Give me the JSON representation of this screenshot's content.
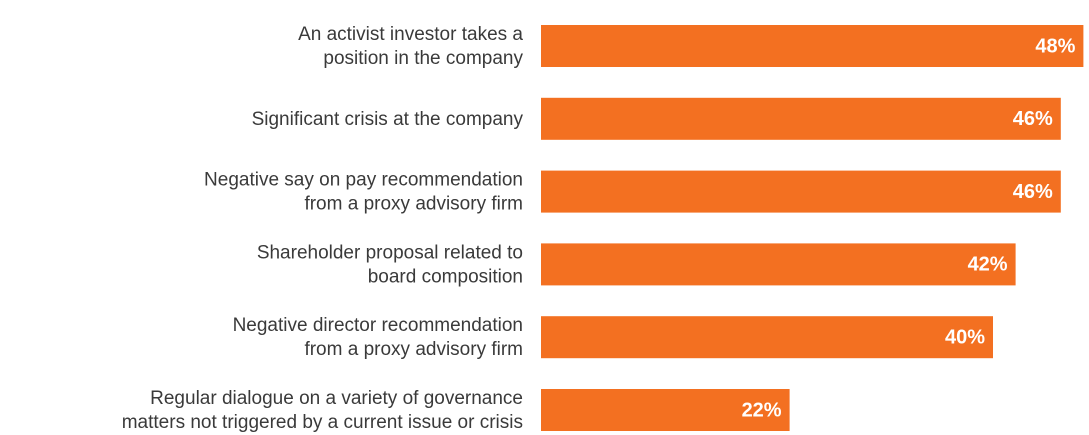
{
  "chart_data": {
    "type": "bar",
    "orientation": "horizontal",
    "categories": [
      [
        "An activist investor takes a",
        "position in the company"
      ],
      [
        "Significant crisis at the company"
      ],
      [
        "Negative say on pay recommendation",
        "from a proxy advisory firm"
      ],
      [
        "Shareholder proposal related to",
        "board composition"
      ],
      [
        "Negative director recommendation",
        "from a proxy advisory firm"
      ],
      [
        "Regular dialogue on a variety of governance",
        "matters not triggered by a current issue or crisis"
      ]
    ],
    "values": [
      48,
      46,
      46,
      42,
      40,
      22
    ],
    "value_labels": [
      "48%",
      "46%",
      "46%",
      "42%",
      "40%",
      "22%"
    ],
    "color": "#f37021"
  }
}
